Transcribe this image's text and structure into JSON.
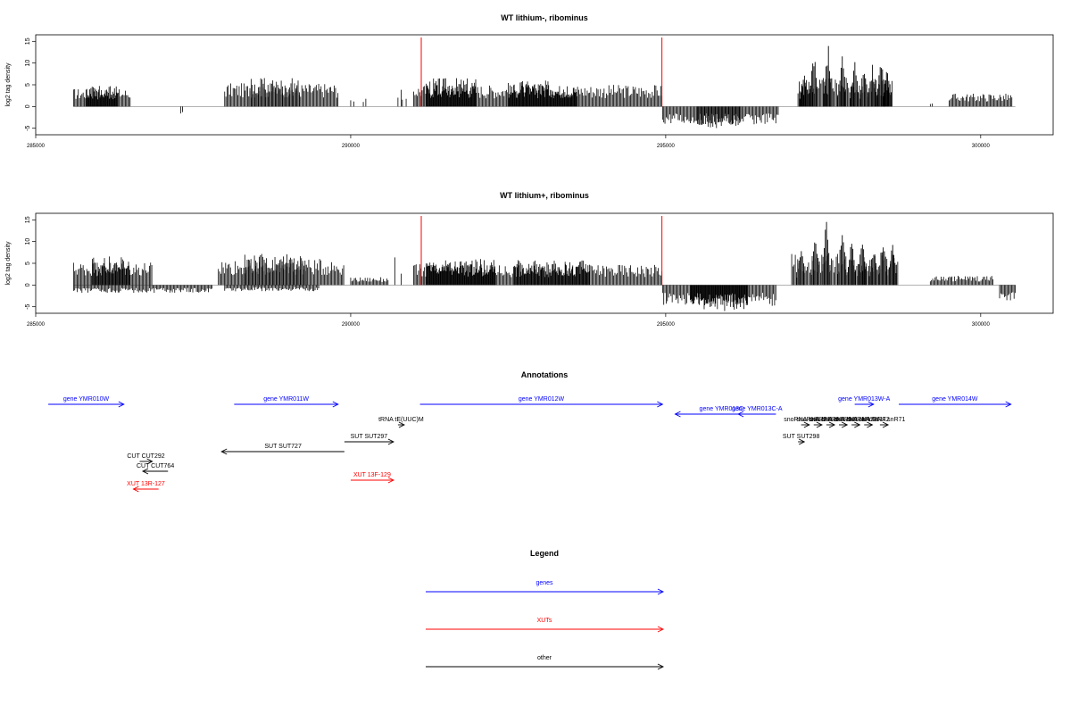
{
  "chart_data": [
    {
      "type": "bar",
      "title": "WT lithium-, ribominus",
      "ylabel": "log2 tag density",
      "xlim": [
        285000,
        301150
      ],
      "ylim": [
        -6.5,
        16.5
      ],
      "xticks": [
        285000,
        290000,
        295000,
        300000
      ],
      "xtick_labels": [
        "285000",
        "290000",
        "295000",
        "300000"
      ],
      "yticks": [
        -5,
        0,
        5,
        10,
        15
      ],
      "ytick_labels": [
        "-5",
        "0",
        "5",
        "10",
        "15"
      ],
      "markers": [
        291120,
        294940
      ],
      "series": [
        {
          "values": [
            {
              "start": 285600,
              "end": 286500,
              "level": 3.5
            },
            {
              "start": 285800,
              "end": 286300,
              "level": 4.0
            },
            {
              "start": 287300,
              "end": 287330,
              "level": -1.5
            },
            {
              "start": 288000,
              "end": 289800,
              "level": 4.5
            },
            {
              "start": 288400,
              "end": 289200,
              "level": 5.5
            },
            {
              "start": 290000,
              "end": 290050,
              "level": 2.0
            },
            {
              "start": 290200,
              "end": 290240,
              "level": 1.5
            },
            {
              "start": 290750,
              "end": 290800,
              "level": 4.0
            },
            {
              "start": 290820,
              "end": 290880,
              "level": 1.5
            },
            {
              "start": 291000,
              "end": 294950,
              "level": 4.2
            },
            {
              "start": 291200,
              "end": 292000,
              "level": 5.5
            },
            {
              "start": 292500,
              "end": 293600,
              "level": 5.0
            },
            {
              "start": 294950,
              "end": 296800,
              "level": -3.5
            },
            {
              "start": 295500,
              "end": 296200,
              "level": -4.2
            },
            {
              "start": 297100,
              "end": 298600,
              "level": 5.5
            },
            {
              "start": 299200,
              "end": 299230,
              "level": 1.0
            },
            {
              "start": 299500,
              "end": 300500,
              "level": 2.5
            }
          ]
        }
      ],
      "peaks": [
        {
          "x": 297200,
          "y": 8
        },
        {
          "x": 297350,
          "y": 13.5
        },
        {
          "x": 297580,
          "y": 15
        },
        {
          "x": 297800,
          "y": 12
        },
        {
          "x": 298000,
          "y": 11
        },
        {
          "x": 298150,
          "y": 9
        },
        {
          "x": 298280,
          "y": 10
        },
        {
          "x": 298420,
          "y": 12
        },
        {
          "x": 298520,
          "y": 10.5
        }
      ]
    },
    {
      "type": "bar",
      "title": "WT lithium+, ribominus",
      "ylabel": "log2 tag density",
      "xlim": [
        285000,
        301150
      ],
      "ylim": [
        -6.5,
        16.5
      ],
      "xticks": [
        285000,
        290000,
        295000,
        300000
      ],
      "xtick_labels": [
        "285000",
        "290000",
        "295000",
        "300000"
      ],
      "yticks": [
        -5,
        0,
        5,
        10,
        15
      ],
      "ytick_labels": [
        "-5",
        "0",
        "5",
        "10",
        "15"
      ],
      "markers": [
        291120,
        294940
      ],
      "series": [
        {
          "values": [
            {
              "start": 285600,
              "end": 286850,
              "level": 4.5
            },
            {
              "start": 285900,
              "end": 286500,
              "level": 5.5
            },
            {
              "start": 285600,
              "end": 287800,
              "level": -1.5
            },
            {
              "start": 287900,
              "end": 289900,
              "level": 5.0
            },
            {
              "start": 288300,
              "end": 289300,
              "level": 6.0
            },
            {
              "start": 288000,
              "end": 289500,
              "level": -1.2
            },
            {
              "start": 290000,
              "end": 290600,
              "level": 1.5
            },
            {
              "start": 290700,
              "end": 290800,
              "level": 5.5
            },
            {
              "start": 291000,
              "end": 294950,
              "level": 4.0
            },
            {
              "start": 291200,
              "end": 292300,
              "level": 5.0
            },
            {
              "start": 292600,
              "end": 293800,
              "level": 4.8
            },
            {
              "start": 294950,
              "end": 296750,
              "level": -4.0
            },
            {
              "start": 295400,
              "end": 296300,
              "level": -5.0
            },
            {
              "start": 297000,
              "end": 298700,
              "level": 6.0
            },
            {
              "start": 299200,
              "end": 300200,
              "level": 1.8
            },
            {
              "start": 300300,
              "end": 300550,
              "level": -3.0
            }
          ]
        }
      ],
      "peaks": [
        {
          "x": 297150,
          "y": 9
        },
        {
          "x": 297380,
          "y": 13
        },
        {
          "x": 297550,
          "y": 15.5
        },
        {
          "x": 297800,
          "y": 13.5
        },
        {
          "x": 297950,
          "y": 11
        },
        {
          "x": 298120,
          "y": 12
        },
        {
          "x": 298300,
          "y": 10
        },
        {
          "x": 298450,
          "y": 12.5
        },
        {
          "x": 298600,
          "y": 10
        }
      ]
    }
  ],
  "annotations": {
    "title": "Annotations",
    "features": [
      {
        "label": "gene YMR010W",
        "start": 285200,
        "end": 286400,
        "strand": "+",
        "row": 0,
        "kind": "gene"
      },
      {
        "label": "gene YMR011W",
        "start": 288150,
        "end": 289800,
        "strand": "+",
        "row": 0,
        "kind": "gene"
      },
      {
        "label": "gene YMR012W",
        "start": 291100,
        "end": 294950,
        "strand": "+",
        "row": 0,
        "kind": "gene"
      },
      {
        "label": "gene YMR013W-A",
        "start": 298000,
        "end": 298300,
        "strand": "+",
        "row": 0,
        "kind": "gene"
      },
      {
        "label": "gene YMR014W",
        "start": 298700,
        "end": 300480,
        "strand": "+",
        "row": 0,
        "kind": "gene"
      },
      {
        "label": "gene YMR013C",
        "start": 295150,
        "end": 296620,
        "strand": "-",
        "row": 1,
        "kind": "gene"
      },
      {
        "label": "gene YMR013C-A",
        "start": 296150,
        "end": 296750,
        "strand": "-",
        "row": 1,
        "kind": "gene"
      },
      {
        "label": "tRNA tE(UUC)M",
        "start": 290750,
        "end": 290850,
        "strand": "+",
        "row": 2,
        "kind": "other"
      },
      {
        "label": "snoRNA snR77",
        "start": 297150,
        "end": 297280,
        "strand": "+",
        "row": 2,
        "kind": "other"
      },
      {
        "label": "snoRNA snR76",
        "start": 297350,
        "end": 297480,
        "strand": "+",
        "row": 2,
        "kind": "other"
      },
      {
        "label": "snoRNA snR75",
        "start": 297550,
        "end": 297680,
        "strand": "+",
        "row": 2,
        "kind": "other"
      },
      {
        "label": "snoRNA snR74",
        "start": 297750,
        "end": 297880,
        "strand": "+",
        "row": 2,
        "kind": "other"
      },
      {
        "label": "snoRNA snR73",
        "start": 297950,
        "end": 298080,
        "strand": "+",
        "row": 2,
        "kind": "other"
      },
      {
        "label": "snoRNA snR72",
        "start": 298150,
        "end": 298280,
        "strand": "+",
        "row": 2,
        "kind": "other"
      },
      {
        "label": "snoRNA snR71",
        "start": 298400,
        "end": 298530,
        "strand": "+",
        "row": 2,
        "kind": "other"
      },
      {
        "label": "SUT SUT297",
        "start": 289900,
        "end": 290680,
        "strand": "+",
        "row": 3,
        "kind": "other"
      },
      {
        "label": "SUT SUT298",
        "start": 297100,
        "end": 297200,
        "strand": "+",
        "row": 3,
        "kind": "other"
      },
      {
        "label": "SUT SUT727",
        "start": 287950,
        "end": 289900,
        "strand": "-",
        "row": 4,
        "kind": "other"
      },
      {
        "label": "CUT CUT292",
        "start": 286650,
        "end": 286850,
        "strand": "+",
        "row": 5,
        "kind": "other"
      },
      {
        "label": "CUT CUT764",
        "start": 286700,
        "end": 287100,
        "strand": "-",
        "row": 6,
        "kind": "other"
      },
      {
        "label": "XUT 13F-129",
        "start": 290000,
        "end": 290680,
        "strand": "+",
        "row": 7,
        "kind": "xut"
      },
      {
        "label": "XUT 13R-127",
        "start": 286550,
        "end": 286950,
        "strand": "-",
        "row": 8,
        "kind": "xut"
      }
    ]
  },
  "legend": {
    "title": "Legend",
    "items": [
      {
        "label": "genes",
        "color": "#0000ff"
      },
      {
        "label": "XUTs",
        "color": "#ff0000"
      },
      {
        "label": "other",
        "color": "#000000"
      }
    ]
  },
  "colors": {
    "gene": "#0000ff",
    "xut": "#ff0000",
    "other": "#000000",
    "marker": "#ff0000",
    "zero": "#999999"
  }
}
